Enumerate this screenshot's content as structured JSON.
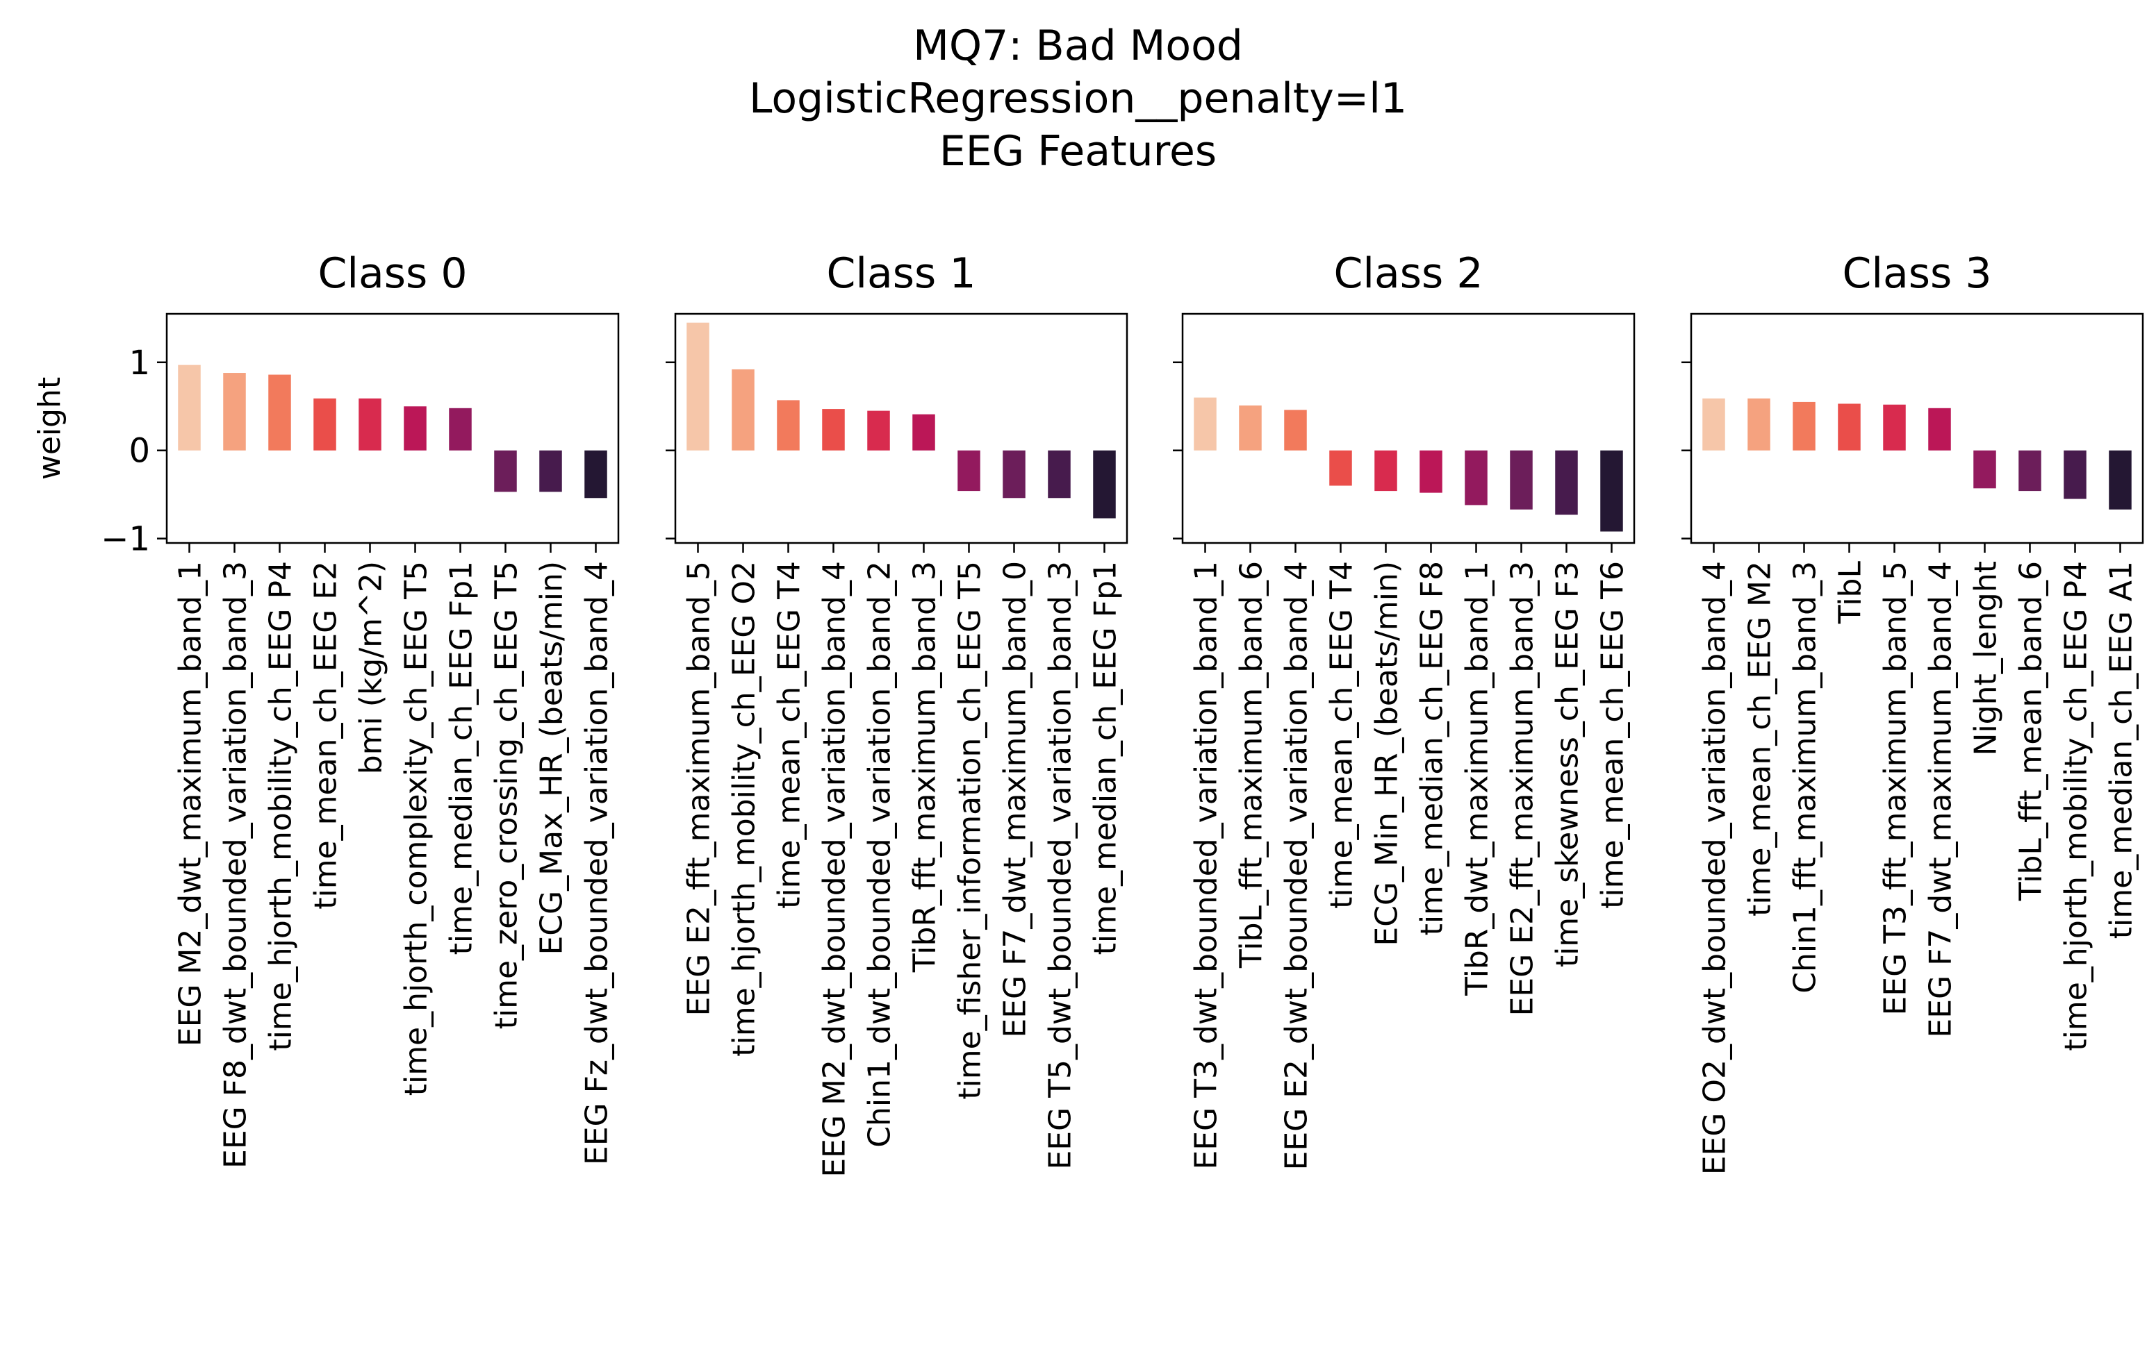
{
  "figure": {
    "title_lines": [
      "MQ7: Bad Mood",
      "LogisticRegression__penalty=l1",
      "EEG Features"
    ]
  },
  "chart_data": [
    {
      "type": "bar",
      "title": "Class 0",
      "ylabel": "weight",
      "ylim": [
        -1.05,
        1.55
      ],
      "yticks": [
        -1,
        0,
        1
      ],
      "yticklabels": [
        "−1",
        "0",
        "1"
      ],
      "categories": [
        "EEG M2_dwt_maximum_band_1",
        "EEG F8_dwt_bounded_variation_band_3",
        "time_hjorth_mobility_ch_EEG P4",
        "time_mean_ch_EEG E2",
        "bmi (kg/m^2)",
        "time_hjorth_complexity_ch_EEG T5",
        "time_median_ch_EEG Fp1",
        "time_zero_crossing_ch_EEG T5",
        "ECG_Max_HR_(beats/min)",
        "EEG Fz_dwt_bounded_variation_band_4"
      ],
      "values": [
        0.97,
        0.88,
        0.86,
        0.59,
        0.59,
        0.5,
        0.48,
        -0.47,
        -0.47,
        -0.54
      ],
      "colors": [
        "#f6c6a9",
        "#f5a27f",
        "#f27a5c",
        "#ea4e4a",
        "#d82b4e",
        "#bb1757",
        "#931a5e",
        "#6c1e5a",
        "#471b4d",
        "#241733"
      ]
    },
    {
      "type": "bar",
      "title": "Class 1",
      "ylabel": "",
      "ylim": [
        -1.05,
        1.55
      ],
      "yticks": [
        -1,
        0,
        1
      ],
      "yticklabels": [],
      "categories": [
        "EEG E2_fft_maximum_band_5",
        "time_hjorth_mobility_ch_EEG O2",
        "time_mean_ch_EEG T4",
        "EEG M2_dwt_bounded_variation_band_4",
        "Chin1_dwt_bounded_variation_band_2",
        "TibR_fft_maximum_band_3",
        "time_fisher_information_ch_EEG T5",
        "EEG F7_dwt_maximum_band_0",
        "EEG T5_dwt_bounded_variation_band_3",
        "time_median_ch_EEG Fp1"
      ],
      "values": [
        1.45,
        0.92,
        0.57,
        0.47,
        0.45,
        0.41,
        -0.46,
        -0.54,
        -0.54,
        -0.77
      ],
      "colors": [
        "#f6c6a9",
        "#f5a27f",
        "#f27a5c",
        "#ea4e4a",
        "#d82b4e",
        "#bb1757",
        "#931a5e",
        "#6c1e5a",
        "#471b4d",
        "#241733"
      ]
    },
    {
      "type": "bar",
      "title": "Class 2",
      "ylabel": "",
      "ylim": [
        -1.05,
        1.55
      ],
      "yticks": [
        -1,
        0,
        1
      ],
      "yticklabels": [],
      "categories": [
        "EEG T3_dwt_bounded_variation_band_1",
        "TibL_fft_maximum_band_6",
        "EEG E2_dwt_bounded_variation_band_4",
        "time_mean_ch_EEG T4",
        "ECG_Min_HR_(beats/min)",
        "time_median_ch_EEG F8",
        "TibR_dwt_maximum_band_1",
        "EEG E2_fft_maximum_band_3",
        "time_skewness_ch_EEG F3",
        "time_mean_ch_EEG T6"
      ],
      "values": [
        0.6,
        0.51,
        0.46,
        -0.4,
        -0.46,
        -0.48,
        -0.62,
        -0.67,
        -0.73,
        -0.92
      ],
      "colors": [
        "#f6c6a9",
        "#f5a27f",
        "#f27a5c",
        "#ea4e4a",
        "#d82b4e",
        "#bb1757",
        "#931a5e",
        "#6c1e5a",
        "#471b4d",
        "#241733"
      ]
    },
    {
      "type": "bar",
      "title": "Class 3",
      "ylabel": "",
      "ylim": [
        -1.05,
        1.55
      ],
      "yticks": [
        -1,
        0,
        1
      ],
      "yticklabels": [],
      "categories": [
        "EEG O2_dwt_bounded_variation_band_4",
        "time_mean_ch_EEG M2",
        "Chin1_fft_maximum_band_3",
        "TibL",
        "EEG T3_fft_maximum_band_5",
        "EEG F7_dwt_maximum_band_4",
        "Night_lenght",
        "TibL_fft_mean_band_6",
        "time_hjorth_mobility_ch_EEG P4",
        "time_median_ch_EEG A1"
      ],
      "values": [
        0.59,
        0.59,
        0.55,
        0.53,
        0.52,
        0.48,
        -0.43,
        -0.46,
        -0.55,
        -0.67
      ],
      "colors": [
        "#f6c6a9",
        "#f5a27f",
        "#f27a5c",
        "#ea4e4a",
        "#d82b4e",
        "#bb1757",
        "#931a5e",
        "#6c1e5a",
        "#471b4d",
        "#241733"
      ]
    }
  ]
}
